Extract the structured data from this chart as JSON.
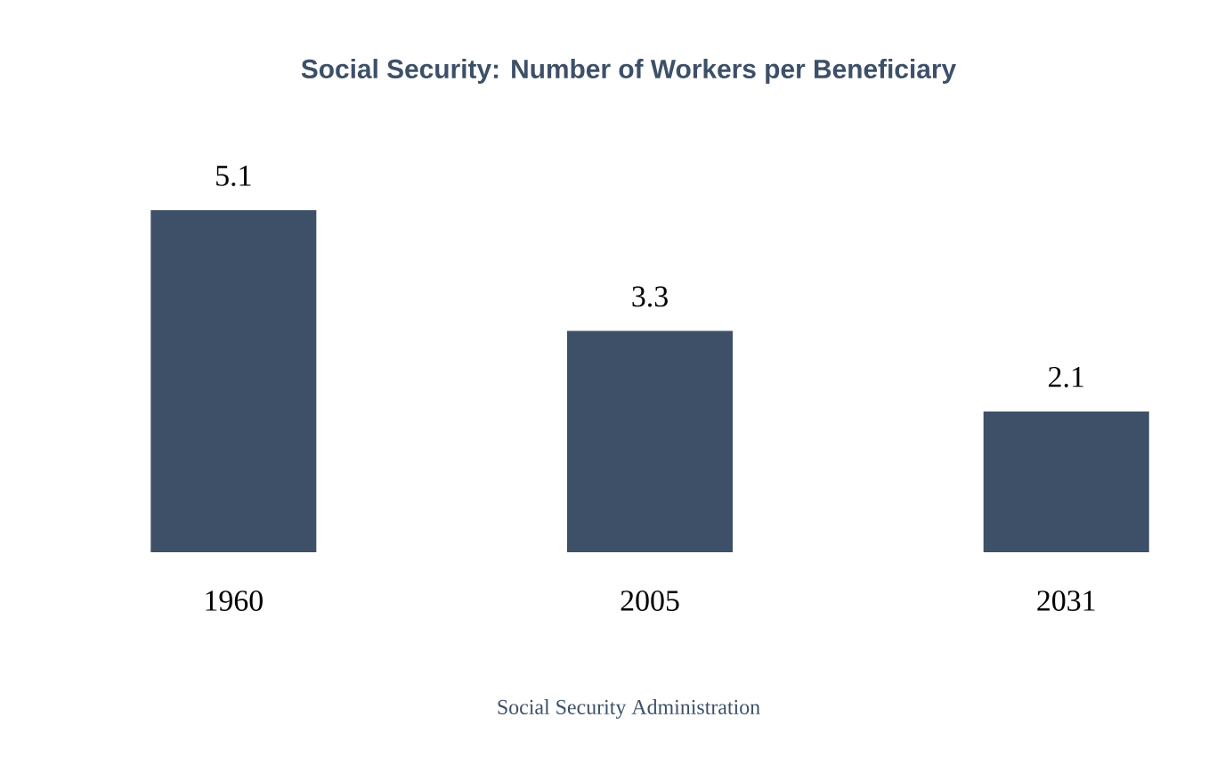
{
  "chart_data": {
    "type": "bar",
    "title": "Social Security: Number of Workers per Beneficiary",
    "categories": [
      "1960",
      "2005",
      "2031"
    ],
    "values": [
      5.1,
      3.3,
      2.1
    ],
    "value_labels": [
      "5.1",
      "3.3",
      "2.1"
    ],
    "color": "#3d5068",
    "tick_labels": "x",
    "annotations": [
      "Social Security Administration"
    ]
  }
}
